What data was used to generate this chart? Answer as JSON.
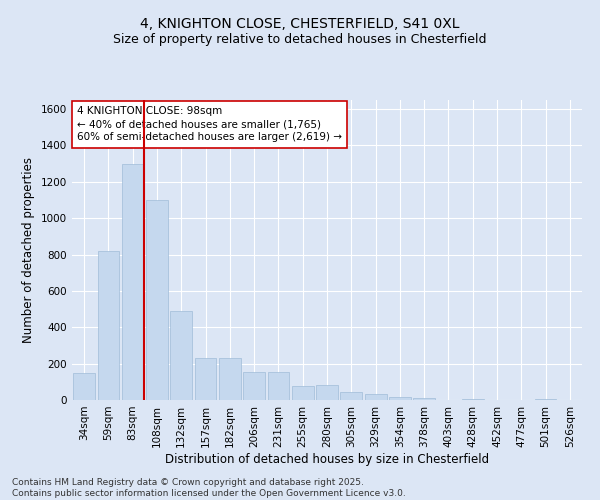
{
  "title": "4, KNIGHTON CLOSE, CHESTERFIELD, S41 0XL",
  "subtitle": "Size of property relative to detached houses in Chesterfield",
  "xlabel": "Distribution of detached houses by size in Chesterfield",
  "ylabel": "Number of detached properties",
  "categories": [
    "34sqm",
    "59sqm",
    "83sqm",
    "108sqm",
    "132sqm",
    "157sqm",
    "182sqm",
    "206sqm",
    "231sqm",
    "255sqm",
    "280sqm",
    "305sqm",
    "329sqm",
    "354sqm",
    "378sqm",
    "403sqm",
    "428sqm",
    "452sqm",
    "477sqm",
    "501sqm",
    "526sqm"
  ],
  "values": [
    150,
    820,
    1300,
    1100,
    490,
    230,
    230,
    155,
    155,
    75,
    85,
    45,
    35,
    18,
    12,
    2,
    8,
    2,
    2,
    4,
    2
  ],
  "bar_color": "#c5d8ee",
  "bar_edgecolor": "#a0bcd8",
  "vline_color": "#cc0000",
  "annotation_text": "4 KNIGHTON CLOSE: 98sqm\n← 40% of detached houses are smaller (1,765)\n60% of semi-detached houses are larger (2,619) →",
  "annotation_box_color": "#ffffff",
  "annotation_box_edgecolor": "#cc0000",
  "ylim": [
    0,
    1650
  ],
  "yticks": [
    0,
    200,
    400,
    600,
    800,
    1000,
    1200,
    1400,
    1600
  ],
  "bg_color": "#dce6f5",
  "plot_bg_color": "#dce6f5",
  "footer": "Contains HM Land Registry data © Crown copyright and database right 2025.\nContains public sector information licensed under the Open Government Licence v3.0.",
  "title_fontsize": 10,
  "subtitle_fontsize": 9,
  "xlabel_fontsize": 8.5,
  "ylabel_fontsize": 8.5,
  "tick_fontsize": 7.5,
  "footer_fontsize": 6.5,
  "annotation_fontsize": 7.5
}
